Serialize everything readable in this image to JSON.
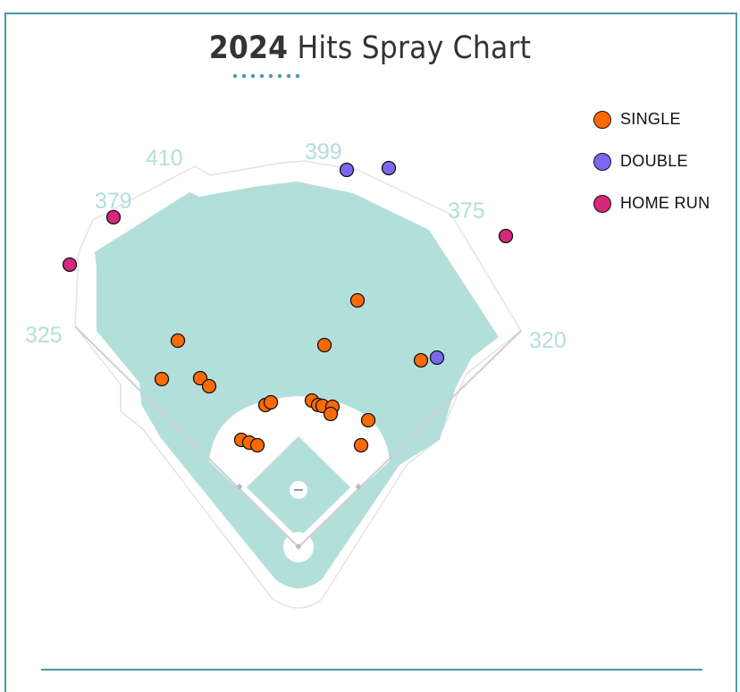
{
  "title": {
    "year": "2024",
    "text": "Hits Spray Chart"
  },
  "legend": [
    {
      "label": "SINGLE",
      "color": "#fc6a03"
    },
    {
      "label": "DOUBLE",
      "color": "#7b68ee"
    },
    {
      "label": "HOME RUN",
      "color": "#d6287a"
    }
  ],
  "distances": {
    "left_line": "325",
    "left_field": "379",
    "left_center": "410",
    "center": "399",
    "right_center": "375",
    "right_line": "320"
  },
  "colors": {
    "grass": "#b3dfdb",
    "frame": "#4a9aa5",
    "distance_text": "#b3dedb"
  },
  "chart_data": {
    "type": "scatter",
    "title": "2024 Hits Spray Chart",
    "series": [
      {
        "name": "SINGLE",
        "points": [
          [
            400,
            336
          ],
          [
            199,
            381
          ],
          [
            363,
            386
          ],
          [
            471,
            403
          ],
          [
            181,
            424
          ],
          [
            224,
            423
          ],
          [
            234,
            432
          ],
          [
            297,
            453
          ],
          [
            303,
            450
          ],
          [
            349,
            448
          ],
          [
            356,
            453
          ],
          [
            361,
            454
          ],
          [
            372,
            455
          ],
          [
            370,
            463
          ],
          [
            412,
            470
          ],
          [
            404,
            498
          ],
          [
            270,
            492
          ],
          [
            279,
            495
          ],
          [
            288,
            498
          ]
        ]
      },
      {
        "name": "DOUBLE",
        "points": [
          [
            388,
            190
          ],
          [
            435,
            188
          ],
          [
            489,
            400
          ]
        ]
      },
      {
        "name": "HOME RUN",
        "points": [
          [
            127,
            243
          ],
          [
            78,
            296
          ],
          [
            566,
            264
          ]
        ]
      }
    ]
  }
}
